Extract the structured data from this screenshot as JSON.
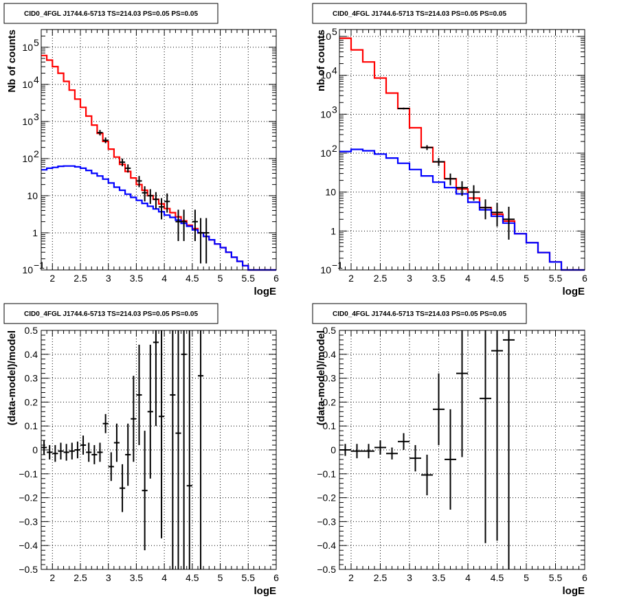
{
  "title": "CID0_4FGL J1744.6-5713 TS=214.03 PS=0.05 PS=0.05",
  "colors": {
    "data": "#000000",
    "total_model": "#ff0000",
    "source_model": "#0000ff",
    "grid": "#000000"
  },
  "chart_data": [
    {
      "type": "line",
      "title": "CID0_4FGL J1744.6-5713 TS=214.03 PS=0.05 PS=0.05",
      "xlabel": "logE",
      "ylabel": "Nb of counts",
      "xlim": [
        1.8,
        6.0
      ],
      "ylim": [
        0.1,
        300000
      ],
      "yscale": "log",
      "grid": true,
      "x_ticks": [
        "2",
        "2.5",
        "3",
        "3.5",
        "4",
        "4.5",
        "5",
        "5.5",
        "6"
      ],
      "y_ticks": [
        {
          "v": 0.1,
          "m": "10",
          "e": "−1"
        },
        {
          "v": 1,
          "m": "1",
          "e": ""
        },
        {
          "v": 10,
          "m": "10",
          "e": ""
        },
        {
          "v": 100,
          "m": "10",
          "e": "2"
        },
        {
          "v": 1000,
          "m": "10",
          "e": "3"
        },
        {
          "v": 10000,
          "m": "10",
          "e": "4"
        },
        {
          "v": 100000,
          "m": "10",
          "e": "5"
        }
      ],
      "series": [
        {
          "role": "total_model",
          "bin_edges": [
            1.8,
            1.9,
            2.0,
            2.1,
            2.2,
            2.3,
            2.4,
            2.5,
            2.6,
            2.7,
            2.8,
            2.9,
            3.0,
            3.1,
            3.2,
            3.3,
            3.4,
            3.5,
            3.6,
            3.7,
            3.8,
            3.9,
            4.0,
            4.1,
            4.2,
            4.3,
            4.4,
            4.5,
            4.6,
            4.7,
            4.8,
            4.9,
            5.0,
            5.1,
            5.2,
            5.3,
            5.4,
            5.5,
            5.6,
            5.7,
            5.8,
            5.9,
            6.0
          ],
          "values": [
            60000,
            45000,
            30000,
            20000,
            12000,
            7000,
            4000,
            2400,
            1400,
            800,
            480,
            290,
            180,
            110,
            70,
            45,
            30,
            20,
            14,
            10,
            8,
            6,
            4.5,
            3.5,
            2.7,
            2.1,
            1.6,
            1.3,
            1.0,
            0.8,
            0.65,
            0.5,
            0.4,
            0.3,
            0.22,
            0.17,
            0.13,
            0.1,
            0.1,
            0.1,
            0.1,
            0.1
          ]
        },
        {
          "role": "source_model",
          "bin_edges": [
            1.8,
            1.9,
            2.0,
            2.1,
            2.2,
            2.3,
            2.4,
            2.5,
            2.6,
            2.7,
            2.8,
            2.9,
            3.0,
            3.1,
            3.2,
            3.3,
            3.4,
            3.5,
            3.6,
            3.7,
            3.8,
            3.9,
            4.0,
            4.1,
            4.2,
            4.3,
            4.4,
            4.5,
            4.6,
            4.7,
            4.8,
            4.9,
            5.0,
            5.1,
            5.2,
            5.3,
            5.4,
            5.5,
            5.6,
            5.7,
            5.8,
            5.9,
            6.0
          ],
          "values": [
            50,
            55,
            58,
            62,
            63,
            63,
            60,
            55,
            48,
            40,
            34,
            28,
            22,
            17,
            14,
            11,
            9,
            7.5,
            6.2,
            5.2,
            4.4,
            3.7,
            3.0,
            2.6,
            2.2,
            1.8,
            1.5,
            1.2,
            1.0,
            0.8,
            0.65,
            0.5,
            0.4,
            0.3,
            0.22,
            0.17,
            0.13,
            0.1,
            0.1,
            0.1,
            0.1,
            0.1
          ]
        },
        {
          "role": "data",
          "points": [
            {
              "x": 2.85,
              "y": 500,
              "xerr": 0.05,
              "lo": 420,
              "hi": 590
            },
            {
              "x": 2.95,
              "y": 310,
              "xerr": 0.05,
              "lo": 260,
              "hi": 370
            },
            {
              "x": 3.25,
              "y": 80,
              "xerr": 0.05,
              "lo": 62,
              "hi": 100
            },
            {
              "x": 3.35,
              "y": 55,
              "xerr": 0.05,
              "lo": 42,
              "hi": 70
            },
            {
              "x": 3.55,
              "y": 25,
              "xerr": 0.05,
              "lo": 17,
              "hi": 34
            },
            {
              "x": 3.65,
              "y": 12,
              "xerr": 0.05,
              "lo": 7,
              "hi": 18
            },
            {
              "x": 3.75,
              "y": 10,
              "xerr": 0.05,
              "lo": 6,
              "hi": 15
            },
            {
              "x": 3.85,
              "y": 8,
              "xerr": 0.05,
              "lo": 4.5,
              "hi": 12.5
            },
            {
              "x": 3.95,
              "y": 5,
              "xerr": 0.05,
              "lo": 2.3,
              "hi": 8.6
            },
            {
              "x": 4.05,
              "y": 7,
              "xerr": 0.05,
              "lo": 3.5,
              "hi": 11.5
            },
            {
              "x": 4.25,
              "y": 2,
              "xerr": 0.05,
              "lo": 0.6,
              "hi": 4.2
            },
            {
              "x": 4.35,
              "y": 2,
              "xerr": 0.05,
              "lo": 0.6,
              "hi": 4.2
            },
            {
              "x": 4.55,
              "y": 2,
              "xerr": 0.05,
              "lo": 0.6,
              "hi": 4.2
            },
            {
              "x": 4.65,
              "y": 1,
              "xerr": 0.05,
              "lo": 0.15,
              "hi": 2.5
            },
            {
              "x": 4.75,
              "y": 1,
              "xerr": 0.05,
              "lo": 0.15,
              "hi": 2.5
            }
          ]
        }
      ]
    },
    {
      "type": "line",
      "title": "CID0_4FGL J1744.6-5713 TS=214.03 PS=0.05 PS=0.05",
      "xlabel": "logE",
      "ylabel": "nb of counts",
      "xlim": [
        1.8,
        6.0
      ],
      "ylim": [
        0.1,
        150000
      ],
      "yscale": "log",
      "grid": true,
      "x_ticks": [
        "2",
        "2.5",
        "3",
        "3.5",
        "4",
        "4.5",
        "5",
        "5.5",
        "6"
      ],
      "y_ticks": [
        {
          "v": 0.1,
          "m": "10",
          "e": "−1"
        },
        {
          "v": 1,
          "m": "1",
          "e": ""
        },
        {
          "v": 10,
          "m": "10",
          "e": ""
        },
        {
          "v": 100,
          "m": "10",
          "e": "2"
        },
        {
          "v": 1000,
          "m": "10",
          "e": "3"
        },
        {
          "v": 10000,
          "m": "10",
          "e": "4"
        },
        {
          "v": 100000,
          "m": "10",
          "e": "5"
        }
      ],
      "series": [
        {
          "role": "total_model",
          "bin_edges": [
            1.8,
            2.0,
            2.2,
            2.4,
            2.6,
            2.8,
            3.0,
            3.2,
            3.4,
            3.6,
            3.8,
            4.0,
            4.2,
            4.4,
            4.6,
            4.8,
            5.0,
            5.2,
            5.4,
            5.6,
            5.8,
            6.0
          ],
          "values": [
            90000,
            45000,
            22000,
            8500,
            3500,
            1400,
            450,
            140,
            60,
            22,
            12,
            7,
            4,
            2.7,
            1.8,
            0.85,
            0.5,
            0.28,
            0.16,
            0.1,
            0.1
          ]
        },
        {
          "role": "source_model",
          "bin_edges": [
            1.8,
            2.0,
            2.2,
            2.4,
            2.6,
            2.8,
            3.0,
            3.2,
            3.4,
            3.6,
            3.8,
            4.0,
            4.2,
            4.4,
            4.6,
            4.8,
            5.0,
            5.2,
            5.4,
            5.6,
            5.8,
            6.0
          ],
          "values": [
            110,
            125,
            115,
            95,
            75,
            55,
            38,
            26,
            18,
            13,
            9,
            5.5,
            3.5,
            2.4,
            1.6,
            0.85,
            0.5,
            0.28,
            0.16,
            0.1,
            0.1
          ]
        },
        {
          "role": "data",
          "points": [
            {
              "x": 2.9,
              "y": 1400,
              "xerr": 0.1,
              "lo": 1330,
              "hi": 1475
            },
            {
              "x": 3.3,
              "y": 140,
              "xerr": 0.1,
              "lo": 120,
              "hi": 160
            },
            {
              "x": 3.5,
              "y": 60,
              "xerr": 0.1,
              "lo": 47,
              "hi": 75
            },
            {
              "x": 3.7,
              "y": 22,
              "xerr": 0.1,
              "lo": 15,
              "hi": 30
            },
            {
              "x": 3.9,
              "y": 13,
              "xerr": 0.1,
              "lo": 8,
              "hi": 19
            },
            {
              "x": 4.1,
              "y": 10,
              "xerr": 0.1,
              "lo": 6,
              "hi": 15
            },
            {
              "x": 4.3,
              "y": 4,
              "xerr": 0.1,
              "lo": 2,
              "hi": 6.5
            },
            {
              "x": 4.5,
              "y": 3,
              "xerr": 0.1,
              "lo": 1.3,
              "hi": 5.3
            },
            {
              "x": 4.7,
              "y": 2,
              "xerr": 0.1,
              "lo": 0.6,
              "hi": 4.2
            }
          ]
        }
      ]
    },
    {
      "type": "scatter",
      "title": "CID0_4FGL J1744.6-5713 TS=214.03 PS=0.05 PS=0.05",
      "xlabel": "logE",
      "ylabel": "(data-model)/model",
      "xlim": [
        1.8,
        6.0
      ],
      "ylim": [
        -0.5,
        0.5
      ],
      "yscale": "linear",
      "grid": true,
      "x_ticks": [
        "2",
        "2.5",
        "3",
        "3.5",
        "4",
        "4.5",
        "5",
        "5.5",
        "6"
      ],
      "y_ticks": [
        "−0.5",
        "−0.4",
        "−0.3",
        "−0.2",
        "−0.1",
        "0",
        "0.1",
        "0.2",
        "0.3",
        "0.4",
        "0.5"
      ],
      "series": [
        {
          "role": "data",
          "points": [
            {
              "x": 1.85,
              "y": 0.01,
              "xerr": 0.05,
              "lo": -0.02,
              "hi": 0.04
            },
            {
              "x": 1.95,
              "y": -0.01,
              "xerr": 0.05,
              "lo": -0.04,
              "hi": 0.02
            },
            {
              "x": 2.05,
              "y": -0.015,
              "xerr": 0.05,
              "lo": -0.05,
              "hi": 0.02
            },
            {
              "x": 2.15,
              "y": -0.005,
              "xerr": 0.05,
              "lo": -0.04,
              "hi": 0.03
            },
            {
              "x": 2.25,
              "y": -0.01,
              "xerr": 0.05,
              "lo": -0.045,
              "hi": 0.025
            },
            {
              "x": 2.35,
              "y": -0.005,
              "xerr": 0.05,
              "lo": -0.04,
              "hi": 0.03
            },
            {
              "x": 2.45,
              "y": 0.0,
              "xerr": 0.05,
              "lo": -0.035,
              "hi": 0.035
            },
            {
              "x": 2.55,
              "y": 0.02,
              "xerr": 0.05,
              "lo": -0.02,
              "hi": 0.06
            },
            {
              "x": 2.65,
              "y": -0.01,
              "xerr": 0.05,
              "lo": -0.05,
              "hi": 0.03
            },
            {
              "x": 2.75,
              "y": -0.02,
              "xerr": 0.05,
              "lo": -0.06,
              "hi": 0.02
            },
            {
              "x": 2.85,
              "y": -0.01,
              "xerr": 0.05,
              "lo": -0.05,
              "hi": 0.03
            },
            {
              "x": 2.95,
              "y": 0.11,
              "xerr": 0.05,
              "lo": 0.07,
              "hi": 0.15
            },
            {
              "x": 3.05,
              "y": -0.07,
              "xerr": 0.05,
              "lo": -0.13,
              "hi": -0.01
            },
            {
              "x": 3.15,
              "y": 0.03,
              "xerr": 0.05,
              "lo": -0.05,
              "hi": 0.11
            },
            {
              "x": 3.25,
              "y": -0.16,
              "xerr": 0.05,
              "lo": -0.26,
              "hi": -0.06
            },
            {
              "x": 3.35,
              "y": -0.02,
              "xerr": 0.05,
              "lo": -0.15,
              "hi": 0.11
            },
            {
              "x": 3.45,
              "y": 0.13,
              "xerr": 0.05,
              "lo": -0.05,
              "hi": 0.31
            },
            {
              "x": 3.55,
              "y": 0.23,
              "xerr": 0.05,
              "lo": 0.02,
              "hi": 0.44
            },
            {
              "x": 3.65,
              "y": -0.17,
              "xerr": 0.05,
              "lo": -0.42,
              "hi": 0.08
            },
            {
              "x": 3.75,
              "y": 0.16,
              "xerr": 0.05,
              "lo": -0.12,
              "hi": 0.44
            },
            {
              "x": 3.85,
              "y": 0.45,
              "xerr": 0.05,
              "lo": 0.1,
              "hi": 0.8
            },
            {
              "x": 3.95,
              "y": 0.14,
              "xerr": 0.05,
              "lo": -0.37,
              "hi": 0.65
            },
            {
              "x": 4.15,
              "y": 0.23,
              "xerr": 0.05,
              "lo": -0.5,
              "hi": 0.8
            },
            {
              "x": 4.25,
              "y": 0.07,
              "xerr": 0.05,
              "lo": -0.5,
              "hi": 0.8
            },
            {
              "x": 4.35,
              "y": 0.4,
              "xerr": 0.05,
              "lo": -0.5,
              "hi": 0.8
            },
            {
              "x": 4.45,
              "y": -0.15,
              "xerr": 0.05,
              "lo": -0.5,
              "hi": 0.8
            },
            {
              "x": 4.65,
              "y": 0.31,
              "xerr": 0.05,
              "lo": -0.5,
              "hi": 0.8
            }
          ]
        }
      ]
    },
    {
      "type": "scatter",
      "title": "CID0_4FGL J1744.6-5713 TS=214.03 PS=0.05 PS=0.05",
      "xlabel": "logE",
      "ylabel": "(data-model)/model",
      "xlim": [
        1.8,
        6.0
      ],
      "ylim": [
        -0.5,
        0.5
      ],
      "yscale": "linear",
      "grid": true,
      "x_ticks": [
        "2",
        "2.5",
        "3",
        "3.5",
        "4",
        "4.5",
        "5",
        "5.5",
        "6"
      ],
      "y_ticks": [
        "−0.5",
        "−0.4",
        "−0.3",
        "−0.2",
        "−0.1",
        "0",
        "0.1",
        "0.2",
        "0.3",
        "0.4",
        "0.5"
      ],
      "series": [
        {
          "role": "data",
          "points": [
            {
              "x": 1.9,
              "y": 0.0,
              "xerr": 0.1,
              "lo": -0.025,
              "hi": 0.025
            },
            {
              "x": 2.1,
              "y": -0.005,
              "xerr": 0.1,
              "lo": -0.035,
              "hi": 0.025
            },
            {
              "x": 2.3,
              "y": -0.005,
              "xerr": 0.1,
              "lo": -0.035,
              "hi": 0.025
            },
            {
              "x": 2.5,
              "y": 0.01,
              "xerr": 0.1,
              "lo": -0.02,
              "hi": 0.04
            },
            {
              "x": 2.7,
              "y": -0.015,
              "xerr": 0.1,
              "lo": -0.04,
              "hi": 0.01
            },
            {
              "x": 2.9,
              "y": 0.035,
              "xerr": 0.1,
              "lo": 0.0,
              "hi": 0.07
            },
            {
              "x": 3.1,
              "y": -0.035,
              "xerr": 0.1,
              "lo": -0.09,
              "hi": 0.02
            },
            {
              "x": 3.3,
              "y": -0.105,
              "xerr": 0.1,
              "lo": -0.19,
              "hi": -0.02
            },
            {
              "x": 3.5,
              "y": 0.17,
              "xerr": 0.1,
              "lo": 0.02,
              "hi": 0.32
            },
            {
              "x": 3.7,
              "y": -0.04,
              "xerr": 0.1,
              "lo": -0.25,
              "hi": 0.17
            },
            {
              "x": 3.9,
              "y": 0.32,
              "xerr": 0.1,
              "lo": -0.03,
              "hi": 0.8
            },
            {
              "x": 4.3,
              "y": 0.215,
              "xerr": 0.1,
              "lo": -0.39,
              "hi": 0.8
            },
            {
              "x": 4.5,
              "y": 0.415,
              "xerr": 0.1,
              "lo": -0.38,
              "hi": 0.8
            },
            {
              "x": 4.7,
              "y": 0.46,
              "xerr": 0.1,
              "lo": -0.5,
              "hi": 0.8
            }
          ]
        }
      ]
    }
  ]
}
